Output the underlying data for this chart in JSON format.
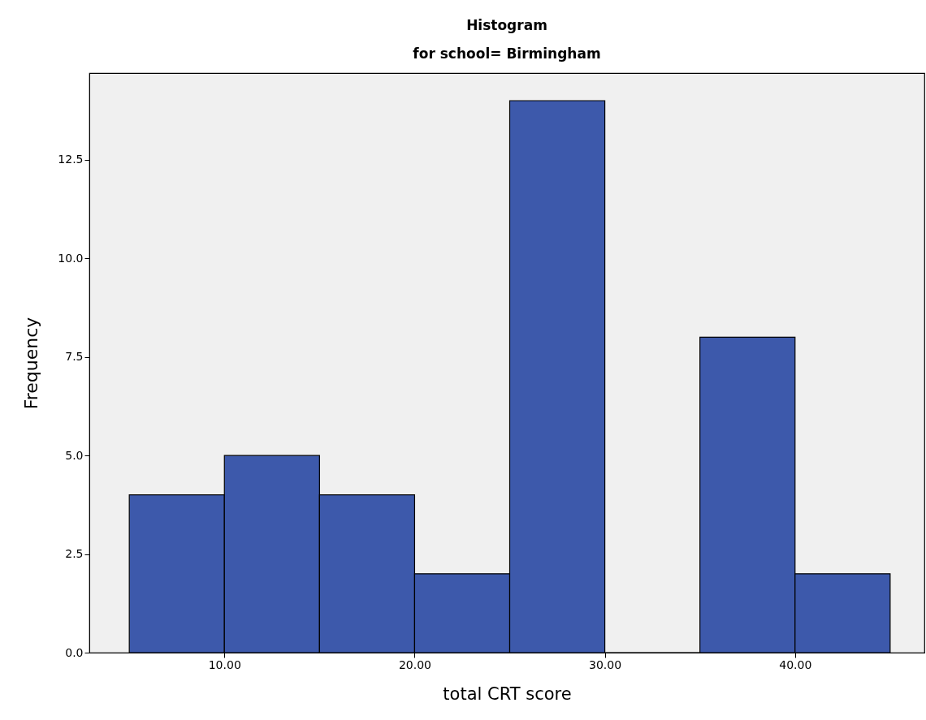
{
  "chart_data": {
    "type": "histogram",
    "title": "Histogram",
    "subtitle": "for school= Birmingham",
    "xlabel": "total CRT score",
    "ylabel": "Frequency",
    "bins": [
      5,
      10,
      15,
      20,
      25,
      30,
      35,
      40,
      45
    ],
    "values": [
      4,
      5,
      4,
      2,
      14,
      0,
      8,
      2
    ],
    "color": "#3d59ab",
    "xlim": [
      2.9,
      46.8
    ],
    "xticks": [
      {
        "value": 10,
        "label": "10.00"
      },
      {
        "value": 20,
        "label": "20.00"
      },
      {
        "value": 30,
        "label": "30.00"
      },
      {
        "value": 40,
        "label": "40.00"
      }
    ],
    "ylim": [
      0,
      14.7
    ],
    "yticks": [
      {
        "value": 0,
        "label": "0.0"
      },
      2.5,
      {
        "value": 5,
        "label": "5.0"
      },
      7.5,
      {
        "value": 10,
        "label": "10.0"
      },
      12.5
    ],
    "grid": false
  }
}
